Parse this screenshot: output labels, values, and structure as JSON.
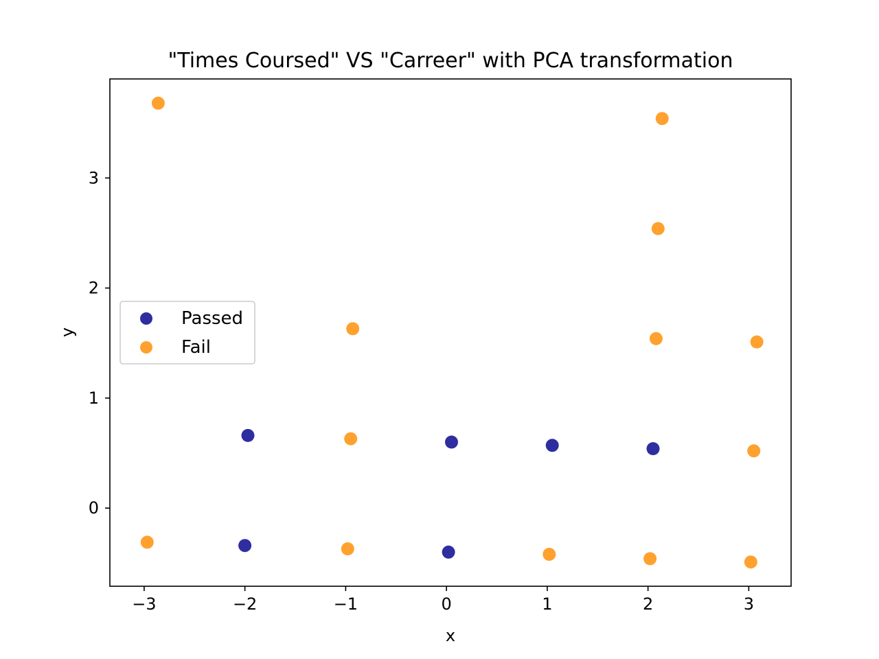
{
  "chart_data": {
    "type": "scatter",
    "title": "\"Times Coursed\" VS \"Carreer\" with PCA transformation",
    "xlabel": "x",
    "ylabel": "y",
    "xlim": [
      -3.34,
      3.42
    ],
    "ylim": [
      -0.71,
      3.9
    ],
    "xticks": [
      -3,
      -2,
      -1,
      0,
      1,
      2,
      3
    ],
    "yticks": [
      0,
      1,
      2,
      3
    ],
    "xtick_labels": [
      "−3",
      "−2",
      "−1",
      "0",
      "1",
      "2",
      "3"
    ],
    "ytick_labels": [
      "0",
      "1",
      "2",
      "3"
    ],
    "grid": false,
    "legend": {
      "placement": "center-left"
    },
    "series": [
      {
        "name": "Passed",
        "color": "#00008b",
        "points": [
          {
            "x": -1.97,
            "y": 0.66
          },
          {
            "x": 0.05,
            "y": 0.6
          },
          {
            "x": 1.05,
            "y": 0.57
          },
          {
            "x": 2.05,
            "y": 0.54
          },
          {
            "x": -2.0,
            "y": -0.34
          },
          {
            "x": 0.02,
            "y": -0.4
          }
        ]
      },
      {
        "name": "Fail",
        "color": "#ff8c00",
        "points": [
          {
            "x": -2.86,
            "y": 3.68
          },
          {
            "x": 2.14,
            "y": 3.54
          },
          {
            "x": 2.1,
            "y": 2.54
          },
          {
            "x": -0.93,
            "y": 1.63
          },
          {
            "x": 2.08,
            "y": 1.54
          },
          {
            "x": 3.08,
            "y": 1.51
          },
          {
            "x": -0.95,
            "y": 0.63
          },
          {
            "x": 3.05,
            "y": 0.52
          },
          {
            "x": -2.97,
            "y": -0.31
          },
          {
            "x": -0.98,
            "y": -0.37
          },
          {
            "x": 1.02,
            "y": -0.42
          },
          {
            "x": 2.02,
            "y": -0.46
          },
          {
            "x": 3.02,
            "y": -0.49
          }
        ]
      }
    ]
  }
}
